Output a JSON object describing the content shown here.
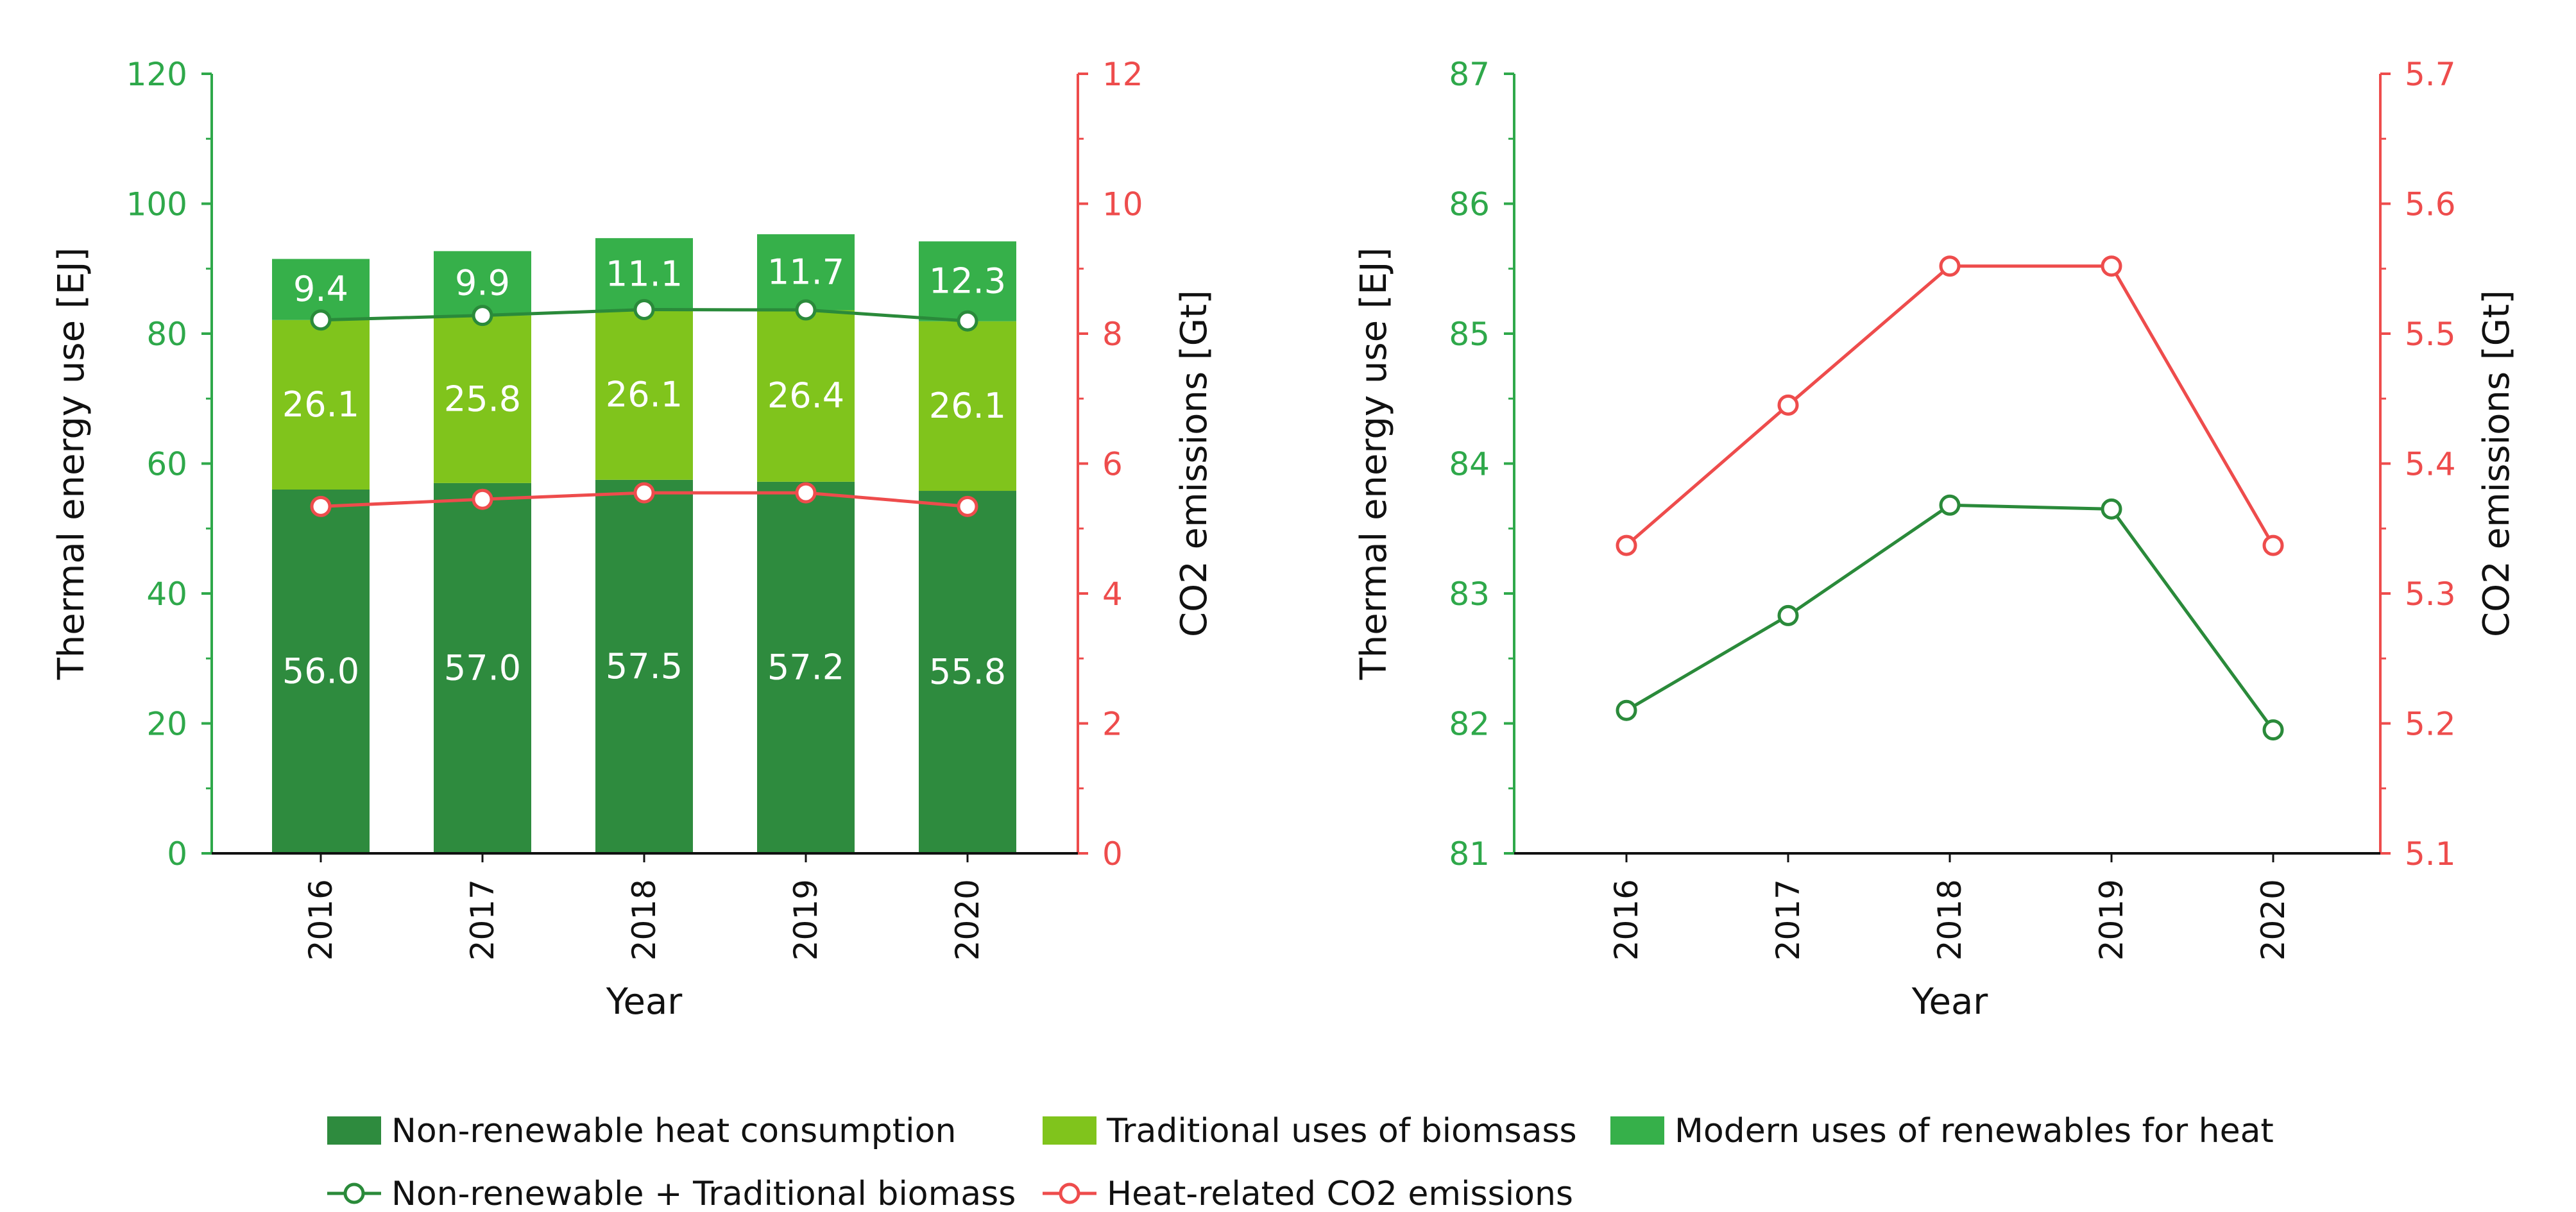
{
  "colors": {
    "non_renewable": "#2e8b3e",
    "traditional": "#80c41c",
    "modern": "#36b04a",
    "green_line": "#2a8a3a",
    "red_line": "#ee4c4c",
    "left_axis": "#2ea84a",
    "right_axis": "#ee4c4c"
  },
  "chart_data": [
    {
      "type": "bar",
      "stacked": true,
      "categories": [
        "2016",
        "2017",
        "2018",
        "2019",
        "2020"
      ],
      "xlabel": "Year",
      "ylabel": "Thermal energy use [EJ]",
      "y2label": "CO2 emissions [Gt]",
      "ylim": [
        0,
        120
      ],
      "y2lim": [
        0,
        12
      ],
      "yticks": [
        "0",
        "20",
        "40",
        "60",
        "80",
        "100",
        "120"
      ],
      "y2ticks": [
        "0",
        "2",
        "4",
        "6",
        "8",
        "10",
        "12"
      ],
      "series": [
        {
          "name": "Non-renewable heat consumption",
          "values": [
            56.0,
            57.0,
            57.5,
            57.2,
            55.8
          ],
          "labels": [
            "56.0",
            "57.0",
            "57.5",
            "57.2",
            "55.8"
          ]
        },
        {
          "name": "Traditional uses of biomsass",
          "values": [
            26.1,
            25.8,
            26.1,
            26.4,
            26.1
          ],
          "labels": [
            "26.1",
            "25.8",
            "26.1",
            "26.4",
            "26.1"
          ]
        },
        {
          "name": "Modern uses of renewables for heat",
          "values": [
            9.4,
            9.9,
            11.1,
            11.7,
            12.3
          ],
          "labels": [
            "9.4",
            "9.9",
            "11.1",
            "11.7",
            "12.3"
          ]
        }
      ],
      "lines": [
        {
          "name": "Non-renewable + Traditional biomass",
          "axis": "left",
          "values": [
            82.1,
            82.8,
            83.7,
            83.65,
            81.95
          ]
        },
        {
          "name": "Heat-related CO2 emissions",
          "axis": "right",
          "values": [
            5.34,
            5.45,
            5.55,
            5.55,
            5.34
          ]
        }
      ],
      "grid": false
    },
    {
      "type": "line",
      "categories": [
        "2016",
        "2017",
        "2018",
        "2019",
        "2020"
      ],
      "xlabel": "Year",
      "ylabel": "Thermal energy use [EJ]",
      "y2label": "CO2 emissions [Gt]",
      "ylim": [
        81,
        87
      ],
      "y2lim": [
        5.1,
        5.7
      ],
      "yticks": [
        "81",
        "82",
        "83",
        "84",
        "85",
        "86",
        "87"
      ],
      "y2ticks": [
        "5.1",
        "5.2",
        "5.3",
        "5.4",
        "5.5",
        "5.6",
        "5.7"
      ],
      "lines": [
        {
          "name": "Non-renewable + Traditional biomass",
          "axis": "left",
          "values": [
            82.1,
            82.83,
            83.68,
            83.65,
            81.95
          ]
        },
        {
          "name": "Heat-related CO2 emissions",
          "axis": "right",
          "values": [
            5.337,
            5.445,
            5.552,
            5.552,
            5.337
          ]
        }
      ],
      "grid": false
    }
  ],
  "legend": {
    "placement": "bottom",
    "items": [
      {
        "label": "Non-renewable heat consumption",
        "kind": "box",
        "color": "#2e8b3e"
      },
      {
        "label": "Traditional uses of biomsass",
        "kind": "box",
        "color": "#80c41c"
      },
      {
        "label": "Modern uses of renewables for heat",
        "kind": "box",
        "color": "#36b04a"
      },
      {
        "label": "Non-renewable + Traditional biomass",
        "kind": "line",
        "color": "#2a8a3a"
      },
      {
        "label": "Heat-related CO2 emissions",
        "kind": "line",
        "color": "#ee4c4c"
      }
    ]
  }
}
